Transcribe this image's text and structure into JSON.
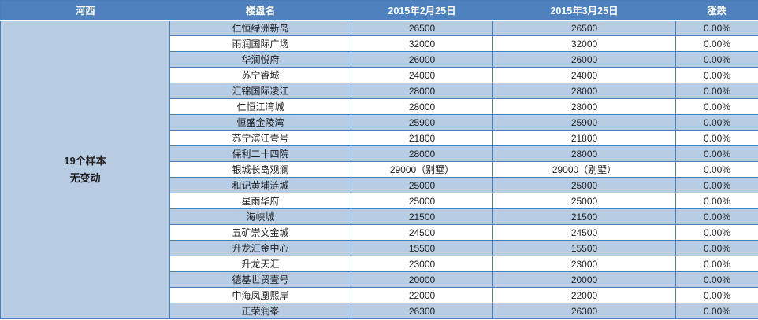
{
  "colors": {
    "header_bg": "#4e81bd",
    "row_alt_bg": "#b8cce4",
    "row_bg": "#ffffff",
    "border": "#4a7eb5",
    "header_text": "#ffffff",
    "body_text": "#1f1f1f"
  },
  "table": {
    "region": "河西",
    "summary_lines": [
      "19个样本",
      "无变动"
    ],
    "columns": [
      "楼盘名",
      "2015年2月25日",
      "2015年3月25日",
      "涨跌"
    ],
    "rows": [
      {
        "name": "仁恒绿洲新岛",
        "feb": "26500",
        "mar": "26500",
        "change": "0.00%"
      },
      {
        "name": "雨润国际广场",
        "feb": "32000",
        "mar": "32000",
        "change": "0.00%"
      },
      {
        "name": "华润悦府",
        "feb": "26000",
        "mar": "26000",
        "change": "0.00%"
      },
      {
        "name": "苏宁睿城",
        "feb": "24000",
        "mar": "24000",
        "change": "0.00%"
      },
      {
        "name": "汇锦国际凌江",
        "feb": "28000",
        "mar": "28000",
        "change": "0.00%"
      },
      {
        "name": "仁恒江湾城",
        "feb": "28000",
        "mar": "28000",
        "change": "0.00%"
      },
      {
        "name": "恒盛金陵湾",
        "feb": "25900",
        "mar": "25900",
        "change": "0.00%"
      },
      {
        "name": "苏宁滨江壹号",
        "feb": "21800",
        "mar": "21800",
        "change": "0.00%"
      },
      {
        "name": "保利二十四院",
        "feb": "28000",
        "mar": "28000",
        "change": "0.00%"
      },
      {
        "name": "银城长岛观澜",
        "feb": "29000（别墅）",
        "mar": "29000（别墅）",
        "change": "0.00%"
      },
      {
        "name": "和记黄埔涟城",
        "feb": "25000",
        "mar": "25000",
        "change": "0.00%"
      },
      {
        "name": "星雨华府",
        "feb": "25000",
        "mar": "25000",
        "change": "0.00%"
      },
      {
        "name": "海峡城",
        "feb": "21500",
        "mar": "21500",
        "change": "0.00%"
      },
      {
        "name": "五矿崇文金城",
        "feb": "24500",
        "mar": "24500",
        "change": "0.00%"
      },
      {
        "name": "升龙汇金中心",
        "feb": "15500",
        "mar": "15500",
        "change": "0.00%"
      },
      {
        "name": "升龙天汇",
        "feb": "23000",
        "mar": "23000",
        "change": "0.00%"
      },
      {
        "name": "德基世贸壹号",
        "feb": "20000",
        "mar": "20000",
        "change": "0.00%"
      },
      {
        "name": "中海凤凰熙岸",
        "feb": "22000",
        "mar": "22000",
        "change": "0.00%"
      },
      {
        "name": "正荣润峯",
        "feb": "26300",
        "mar": "26300",
        "change": "0.00%"
      }
    ]
  }
}
